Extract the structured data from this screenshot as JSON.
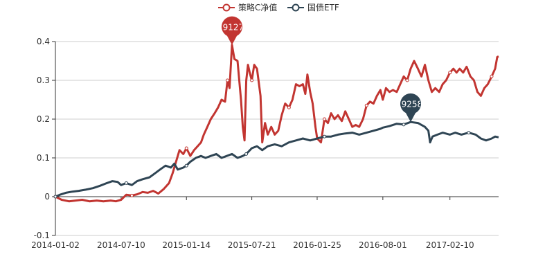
{
  "chart_data": {
    "type": "line",
    "title": "",
    "xlabel": "",
    "ylabel": "",
    "ylim": [
      -0.1,
      0.4
    ],
    "y_ticks": [
      "-0.1",
      "0",
      "0.1",
      "0.2",
      "0.3",
      "0.4"
    ],
    "x_tick_labels": [
      "2014-01-02",
      "2014-07-10",
      "2015-01-14",
      "2015-07-21",
      "2016-01-25",
      "2016-08-01",
      "2017-02-10"
    ],
    "grid": "horizontal",
    "legend_position": "top-center",
    "series": [
      {
        "name": "策略C净值",
        "color": "#c23531",
        "max_label": "0.3912712",
        "points": [
          [
            "2014-01-02",
            0.0
          ],
          [
            "2014-01-20",
            -0.008
          ],
          [
            "2014-02-10",
            -0.012
          ],
          [
            "2014-03-01",
            -0.01
          ],
          [
            "2014-03-20",
            -0.008
          ],
          [
            "2014-04-10",
            -0.012
          ],
          [
            "2014-05-01",
            -0.01
          ],
          [
            "2014-05-20",
            -0.012
          ],
          [
            "2014-06-10",
            -0.01
          ],
          [
            "2014-06-25",
            -0.012
          ],
          [
            "2014-07-10",
            -0.008
          ],
          [
            "2014-07-25",
            0.005
          ],
          [
            "2014-08-10",
            0.003
          ],
          [
            "2014-08-25",
            0.006
          ],
          [
            "2014-09-10",
            0.012
          ],
          [
            "2014-09-25",
            0.01
          ],
          [
            "2014-10-10",
            0.015
          ],
          [
            "2014-10-25",
            0.008
          ],
          [
            "2014-11-10",
            0.02
          ],
          [
            "2014-11-25",
            0.035
          ],
          [
            "2014-12-05",
            0.06
          ],
          [
            "2014-12-15",
            0.09
          ],
          [
            "2014-12-25",
            0.12
          ],
          [
            "2015-01-05",
            0.11
          ],
          [
            "2015-01-14",
            0.125
          ],
          [
            "2015-01-25",
            0.105
          ],
          [
            "2015-02-05",
            0.12
          ],
          [
            "2015-02-15",
            0.13
          ],
          [
            "2015-02-25",
            0.14
          ],
          [
            "2015-03-05",
            0.16
          ],
          [
            "2015-03-15",
            0.18
          ],
          [
            "2015-03-25",
            0.2
          ],
          [
            "2015-04-05",
            0.215
          ],
          [
            "2015-04-15",
            0.23
          ],
          [
            "2015-04-25",
            0.25
          ],
          [
            "2015-05-05",
            0.245
          ],
          [
            "2015-05-12",
            0.3
          ],
          [
            "2015-05-18",
            0.28
          ],
          [
            "2015-05-25",
            0.3912712
          ],
          [
            "2015-06-01",
            0.355
          ],
          [
            "2015-06-10",
            0.35
          ],
          [
            "2015-06-15",
            0.3
          ],
          [
            "2015-06-20",
            0.25
          ],
          [
            "2015-06-25",
            0.18
          ],
          [
            "2015-06-30",
            0.145
          ],
          [
            "2015-07-05",
            0.3
          ],
          [
            "2015-07-10",
            0.34
          ],
          [
            "2015-07-15",
            0.32
          ],
          [
            "2015-07-21",
            0.3
          ],
          [
            "2015-07-28",
            0.34
          ],
          [
            "2015-08-05",
            0.33
          ],
          [
            "2015-08-15",
            0.26
          ],
          [
            "2015-08-20",
            0.14
          ],
          [
            "2015-08-28",
            0.19
          ],
          [
            "2015-09-05",
            0.16
          ],
          [
            "2015-09-15",
            0.18
          ],
          [
            "2015-09-25",
            0.16
          ],
          [
            "2015-10-05",
            0.17
          ],
          [
            "2015-10-15",
            0.21
          ],
          [
            "2015-10-25",
            0.24
          ],
          [
            "2015-11-05",
            0.23
          ],
          [
            "2015-11-15",
            0.25
          ],
          [
            "2015-11-25",
            0.29
          ],
          [
            "2015-12-05",
            0.285
          ],
          [
            "2015-12-15",
            0.29
          ],
          [
            "2015-12-22",
            0.265
          ],
          [
            "2015-12-28",
            0.315
          ],
          [
            "2016-01-05",
            0.27
          ],
          [
            "2016-01-12",
            0.24
          ],
          [
            "2016-01-20",
            0.18
          ],
          [
            "2016-01-25",
            0.15
          ],
          [
            "2016-02-05",
            0.14
          ],
          [
            "2016-02-15",
            0.2
          ],
          [
            "2016-02-25",
            0.19
          ],
          [
            "2016-03-05",
            0.215
          ],
          [
            "2016-03-15",
            0.2
          ],
          [
            "2016-03-25",
            0.21
          ],
          [
            "2016-04-05",
            0.195
          ],
          [
            "2016-04-15",
            0.22
          ],
          [
            "2016-04-25",
            0.2
          ],
          [
            "2016-05-05",
            0.18
          ],
          [
            "2016-05-15",
            0.185
          ],
          [
            "2016-05-25",
            0.18
          ],
          [
            "2016-06-05",
            0.2
          ],
          [
            "2016-06-15",
            0.235
          ],
          [
            "2016-06-25",
            0.245
          ],
          [
            "2016-07-05",
            0.24
          ],
          [
            "2016-07-15",
            0.26
          ],
          [
            "2016-07-25",
            0.275
          ],
          [
            "2016-08-01",
            0.25
          ],
          [
            "2016-08-10",
            0.28
          ],
          [
            "2016-08-20",
            0.27
          ],
          [
            "2016-08-30",
            0.275
          ],
          [
            "2016-09-10",
            0.27
          ],
          [
            "2016-09-20",
            0.29
          ],
          [
            "2016-09-30",
            0.31
          ],
          [
            "2016-10-10",
            0.3
          ],
          [
            "2016-10-20",
            0.33
          ],
          [
            "2016-10-30",
            0.35
          ],
          [
            "2016-11-10",
            0.33
          ],
          [
            "2016-11-20",
            0.31
          ],
          [
            "2016-11-30",
            0.34
          ],
          [
            "2016-12-10",
            0.3
          ],
          [
            "2016-12-20",
            0.27
          ],
          [
            "2016-12-30",
            0.28
          ],
          [
            "2017-01-10",
            0.27
          ],
          [
            "2017-01-20",
            0.29
          ],
          [
            "2017-01-30",
            0.3
          ],
          [
            "2017-02-10",
            0.32
          ],
          [
            "2017-02-20",
            0.33
          ],
          [
            "2017-03-01",
            0.32
          ],
          [
            "2017-03-10",
            0.33
          ],
          [
            "2017-03-20",
            0.32
          ],
          [
            "2017-03-30",
            0.335
          ],
          [
            "2017-04-10",
            0.31
          ],
          [
            "2017-04-20",
            0.3
          ],
          [
            "2017-04-30",
            0.27
          ],
          [
            "2017-05-10",
            0.26
          ],
          [
            "2017-05-20",
            0.28
          ],
          [
            "2017-05-30",
            0.29
          ],
          [
            "2017-06-10",
            0.31
          ],
          [
            "2017-06-20",
            0.33
          ],
          [
            "2017-06-26",
            0.36
          ],
          [
            "2017-06-30",
            0.362
          ]
        ]
      },
      {
        "name": "国债ETF",
        "color": "#2f4554",
        "max_label": "0.1925863",
        "points": [
          [
            "2014-01-02",
            0.0
          ],
          [
            "2014-01-15",
            0.005
          ],
          [
            "2014-02-01",
            0.01
          ],
          [
            "2014-02-20",
            0.013
          ],
          [
            "2014-03-10",
            0.015
          ],
          [
            "2014-03-30",
            0.018
          ],
          [
            "2014-04-20",
            0.022
          ],
          [
            "2014-05-10",
            0.028
          ],
          [
            "2014-05-30",
            0.035
          ],
          [
            "2014-06-15",
            0.04
          ],
          [
            "2014-06-30",
            0.038
          ],
          [
            "2014-07-10",
            0.03
          ],
          [
            "2014-07-25",
            0.035
          ],
          [
            "2014-08-10",
            0.03
          ],
          [
            "2014-08-25",
            0.04
          ],
          [
            "2014-09-10",
            0.045
          ],
          [
            "2014-09-30",
            0.05
          ],
          [
            "2014-10-15",
            0.06
          ],
          [
            "2014-10-30",
            0.07
          ],
          [
            "2014-11-15",
            0.08
          ],
          [
            "2014-11-30",
            0.075
          ],
          [
            "2014-12-10",
            0.085
          ],
          [
            "2014-12-20",
            0.07
          ],
          [
            "2015-01-05",
            0.075
          ],
          [
            "2015-01-14",
            0.08
          ],
          [
            "2015-01-25",
            0.09
          ],
          [
            "2015-02-10",
            0.1
          ],
          [
            "2015-02-25",
            0.105
          ],
          [
            "2015-03-10",
            0.1
          ],
          [
            "2015-03-25",
            0.105
          ],
          [
            "2015-04-10",
            0.11
          ],
          [
            "2015-04-25",
            0.1
          ],
          [
            "2015-05-10",
            0.105
          ],
          [
            "2015-05-25",
            0.11
          ],
          [
            "2015-06-10",
            0.1
          ],
          [
            "2015-06-25",
            0.105
          ],
          [
            "2015-07-05",
            0.11
          ],
          [
            "2015-07-21",
            0.125
          ],
          [
            "2015-08-05",
            0.13
          ],
          [
            "2015-08-20",
            0.12
          ],
          [
            "2015-09-05",
            0.13
          ],
          [
            "2015-09-25",
            0.135
          ],
          [
            "2015-10-15",
            0.13
          ],
          [
            "2015-11-05",
            0.14
          ],
          [
            "2015-11-25",
            0.145
          ],
          [
            "2015-12-15",
            0.15
          ],
          [
            "2016-01-05",
            0.145
          ],
          [
            "2016-01-25",
            0.15
          ],
          [
            "2016-02-15",
            0.155
          ],
          [
            "2016-03-05",
            0.155
          ],
          [
            "2016-03-25",
            0.16
          ],
          [
            "2016-04-15",
            0.163
          ],
          [
            "2016-05-05",
            0.165
          ],
          [
            "2016-05-25",
            0.16
          ],
          [
            "2016-06-15",
            0.165
          ],
          [
            "2016-07-05",
            0.17
          ],
          [
            "2016-07-25",
            0.175
          ],
          [
            "2016-08-01",
            0.178
          ],
          [
            "2016-08-20",
            0.182
          ],
          [
            "2016-09-10",
            0.188
          ],
          [
            "2016-09-30",
            0.186
          ],
          [
            "2016-10-20",
            0.1925863
          ],
          [
            "2016-11-10",
            0.19
          ],
          [
            "2016-11-30",
            0.18
          ],
          [
            "2016-12-10",
            0.17
          ],
          [
            "2016-12-15",
            0.14
          ],
          [
            "2016-12-22",
            0.155
          ],
          [
            "2017-01-05",
            0.16
          ],
          [
            "2017-01-20",
            0.165
          ],
          [
            "2017-02-10",
            0.16
          ],
          [
            "2017-02-25",
            0.165
          ],
          [
            "2017-03-15",
            0.16
          ],
          [
            "2017-04-05",
            0.165
          ],
          [
            "2017-04-25",
            0.16
          ],
          [
            "2017-05-10",
            0.15
          ],
          [
            "2017-05-25",
            0.145
          ],
          [
            "2017-06-10",
            0.15
          ],
          [
            "2017-06-20",
            0.155
          ],
          [
            "2017-06-30",
            0.153
          ]
        ]
      }
    ]
  }
}
